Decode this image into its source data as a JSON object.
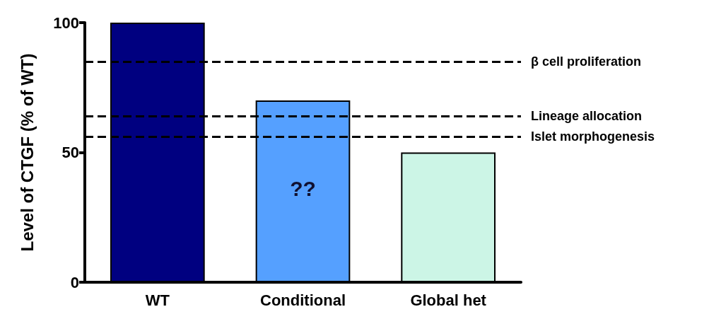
{
  "chart_data": {
    "type": "bar",
    "ylabel": "Level of CTGF (% of WT)",
    "categories": [
      "WT",
      "Conditional",
      "Global het"
    ],
    "values": [
      100,
      70,
      50
    ],
    "colors": [
      "#000080",
      "#55a0ff",
      "#ccf5e6"
    ],
    "ylim": [
      0,
      100
    ],
    "yticks": [
      0,
      50,
      100
    ],
    "grid": false,
    "ref_lines": [
      {
        "axis": "y",
        "value": 85,
        "label": "β cell proliferation",
        "line_style": "dashed",
        "color": "#000000"
      },
      {
        "axis": "y",
        "value": 64,
        "label": "Lineage allocation",
        "line_style": "dashed",
        "color": "#000000"
      },
      {
        "axis": "y",
        "value": 56,
        "label": "Islet morphogenesis",
        "line_style": "dashed",
        "color": "#000000"
      }
    ],
    "annotations": [
      "??"
    ]
  }
}
